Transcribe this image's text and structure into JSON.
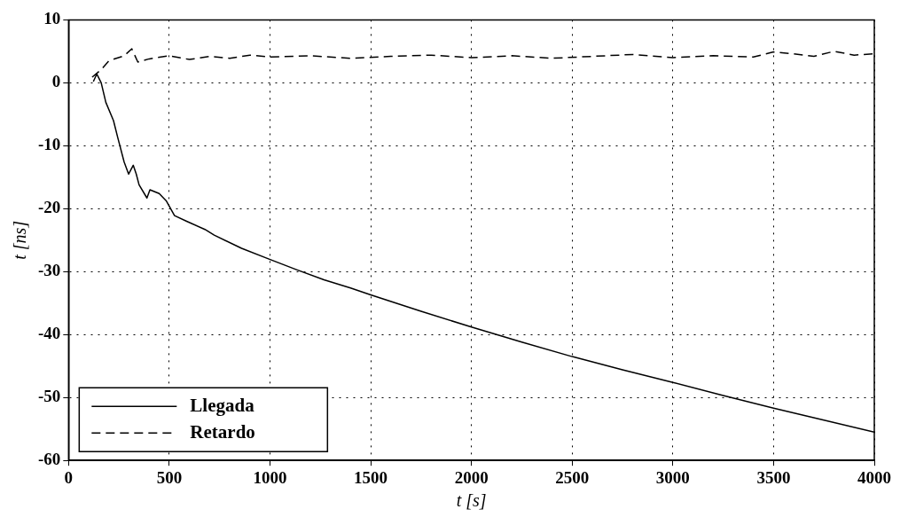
{
  "chart_data": {
    "type": "line",
    "xlabel": "t [s]",
    "ylabel": "t [ns]",
    "xlim": [
      0,
      4000
    ],
    "ylim": [
      -60,
      10
    ],
    "xticks": [
      0,
      500,
      1000,
      1500,
      2000,
      2500,
      3000,
      3500,
      4000
    ],
    "yticks": [
      -60,
      -50,
      -40,
      -30,
      -20,
      -10,
      0,
      10
    ],
    "grid": true,
    "legend": "bottom left",
    "marker": "none",
    "series": [
      {
        "name": "Llegada",
        "color": "#000000",
        "line_style": "solid",
        "x": [
          123,
          140,
          162,
          185,
          223,
          245,
          276,
          298,
          321,
          336,
          350,
          389,
          404,
          450,
          486,
          526,
          586,
          677,
          723,
          859,
          995,
          1132,
          1268,
          1400,
          1500,
          1750,
          2000,
          2250,
          2500,
          2750,
          3000,
          3250,
          3500,
          3750,
          4000
        ],
        "values": [
          0.2,
          1.4,
          0,
          -3.1,
          -6,
          -8.8,
          -12.6,
          -14.5,
          -13.1,
          -14.5,
          -16.2,
          -18.3,
          -17,
          -17.6,
          -18.8,
          -21.1,
          -22,
          -23.3,
          -24.2,
          -26.3,
          -28,
          -29.7,
          -31.3,
          -32.6,
          -33.7,
          -36.3,
          -38.8,
          -41.2,
          -43.5,
          -45.6,
          -47.6,
          -49.7,
          -51.7,
          -53.6,
          -55.5
        ]
      },
      {
        "name": "Retardo",
        "color": "#000000",
        "line_style": "dashed",
        "x": [
          117,
          162,
          200,
          276,
          314,
          344,
          400,
          500,
          600,
          700,
          800,
          900,
          1000,
          1200,
          1400,
          1600,
          1800,
          2000,
          2200,
          2400,
          2600,
          2800,
          3000,
          3200,
          3400,
          3500,
          3600,
          3700,
          3800,
          3900,
          4000
        ],
        "values": [
          0.9,
          2.1,
          3.5,
          4.3,
          5.4,
          3.3,
          3.8,
          4.3,
          3.7,
          4.2,
          3.9,
          4.4,
          4.1,
          4.3,
          3.9,
          4.2,
          4.4,
          4.0,
          4.3,
          3.9,
          4.2,
          4.5,
          4.0,
          4.3,
          4.1,
          4.9,
          4.6,
          4.2,
          5.0,
          4.4,
          4.6
        ]
      }
    ]
  }
}
